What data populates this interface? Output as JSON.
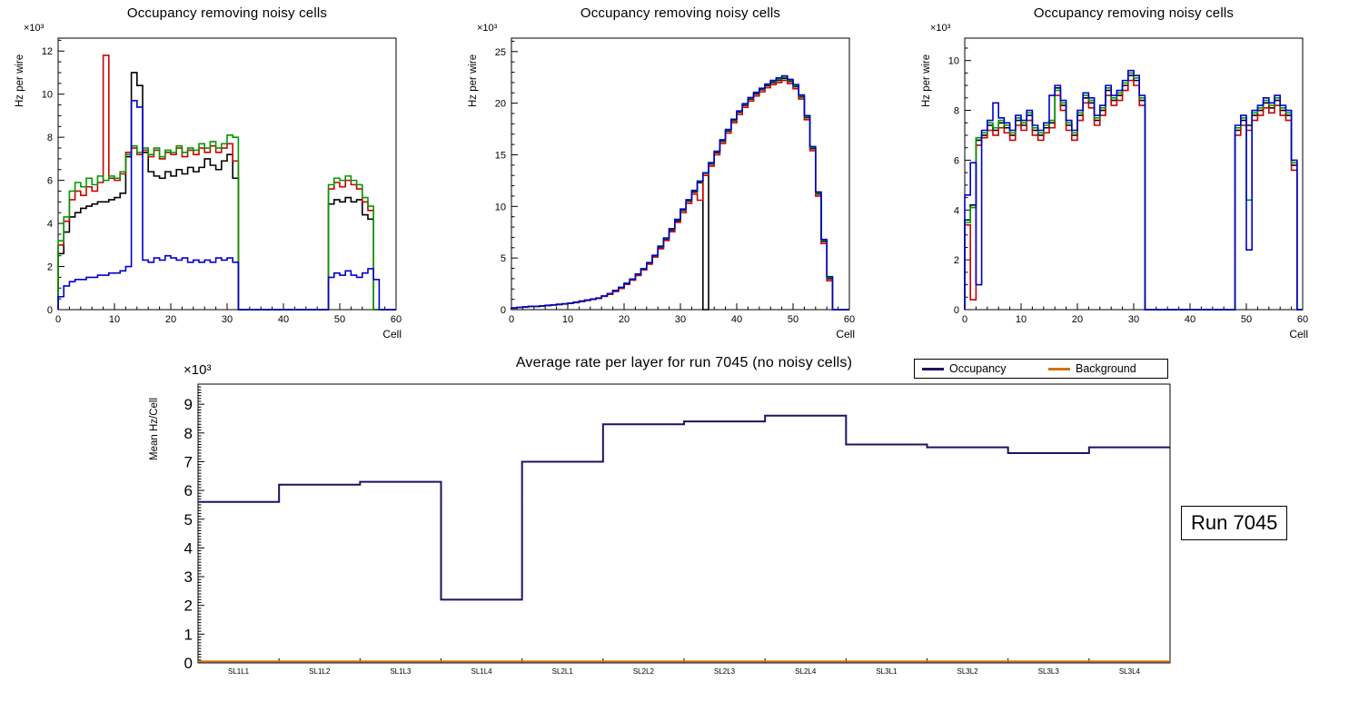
{
  "run_box": {
    "label": "Run 7045"
  },
  "chart_data": [
    {
      "type": "bar",
      "subtype": "histogram-step",
      "title": "Occupancy removing noisy cells",
      "ylabel": "Hz per wire",
      "xlabel": "Cell",
      "exponent": "×10³",
      "xlim": [
        0,
        60
      ],
      "ylim": [
        0,
        12.6
      ],
      "xticks": [
        0,
        10,
        20,
        30,
        40,
        50,
        60
      ],
      "yticks": [
        0,
        2,
        4,
        6,
        8,
        10,
        12
      ],
      "grid": false,
      "legend_position": "none",
      "series": [
        {
          "name": "black",
          "color": "#000000",
          "values": [
            2.6,
            3.6,
            4.3,
            4.5,
            4.7,
            4.8,
            4.9,
            5.0,
            5.0,
            5.1,
            5.2,
            5.4,
            7.1,
            11.0,
            10.4,
            7.3,
            6.4,
            6.2,
            6.1,
            6.4,
            6.2,
            6.5,
            6.3,
            6.6,
            6.4,
            6.6,
            7.0,
            6.7,
            6.5,
            6.9,
            7.2,
            6.1,
            0,
            0,
            0,
            0,
            0,
            0,
            0,
            0,
            0,
            0,
            0,
            0,
            0,
            0,
            0,
            0,
            4.9,
            5.1,
            5.0,
            5.2,
            5.0,
            5.1,
            4.4,
            4.2,
            0,
            0,
            0,
            0
          ]
        },
        {
          "name": "red",
          "color": "#cc0000",
          "values": [
            3.0,
            4.1,
            5.1,
            5.5,
            5.3,
            5.7,
            5.5,
            5.9,
            11.8,
            6.1,
            6.0,
            6.3,
            7.3,
            7.5,
            7.2,
            7.4,
            7.1,
            7.4,
            7.0,
            7.3,
            7.2,
            7.5,
            7.1,
            7.4,
            7.2,
            7.5,
            7.3,
            7.6,
            7.3,
            7.5,
            7.7,
            6.9,
            0,
            0,
            0,
            0,
            0,
            0,
            0,
            0,
            0,
            0,
            0,
            0,
            0,
            0,
            0,
            0,
            5.6,
            5.9,
            5.7,
            6.0,
            5.8,
            5.6,
            5.0,
            4.6,
            0,
            0,
            0,
            0
          ]
        },
        {
          "name": "green",
          "color": "#009900",
          "values": [
            3.2,
            4.3,
            5.5,
            5.9,
            5.7,
            6.1,
            5.8,
            6.2,
            6.0,
            6.2,
            6.1,
            6.4,
            7.2,
            7.6,
            7.3,
            7.5,
            7.2,
            7.5,
            7.1,
            7.4,
            7.3,
            7.6,
            7.3,
            7.5,
            7.4,
            7.7,
            7.5,
            7.8,
            7.5,
            7.7,
            8.1,
            8.0,
            0,
            0,
            0,
            0,
            0,
            0,
            0,
            0,
            0,
            0,
            0,
            0,
            0,
            0,
            0,
            0,
            5.8,
            6.1,
            6.0,
            6.2,
            6.0,
            5.8,
            5.2,
            4.8,
            0,
            0,
            0,
            0
          ]
        },
        {
          "name": "blue",
          "color": "#0000cc",
          "values": [
            0.6,
            1.1,
            1.3,
            1.4,
            1.4,
            1.5,
            1.5,
            1.6,
            1.6,
            1.7,
            1.7,
            1.8,
            2.0,
            9.7,
            9.4,
            2.3,
            2.2,
            2.4,
            2.3,
            2.5,
            2.4,
            2.3,
            2.4,
            2.2,
            2.3,
            2.2,
            2.3,
            2.2,
            2.4,
            2.3,
            2.4,
            2.2,
            0,
            0,
            0,
            0,
            0,
            0,
            0,
            0,
            0,
            0,
            0,
            0,
            0,
            0,
            0,
            0,
            1.5,
            1.7,
            1.6,
            1.8,
            1.6,
            1.5,
            1.7,
            1.9,
            1.4,
            0,
            0,
            0
          ]
        }
      ]
    },
    {
      "type": "bar",
      "subtype": "histogram-step",
      "title": "Occupancy removing noisy cells",
      "ylabel": "Hz per wire",
      "xlabel": "Cell",
      "exponent": "×10³",
      "xlim": [
        0,
        60
      ],
      "ylim": [
        0,
        26.3
      ],
      "xticks": [
        0,
        10,
        20,
        30,
        40,
        50,
        60
      ],
      "yticks": [
        0,
        5,
        10,
        15,
        20,
        25
      ],
      "grid": false,
      "legend_position": "none",
      "series": [
        {
          "name": "black",
          "color": "#000000",
          "values": [
            0.15,
            0.2,
            0.25,
            0.3,
            0.3,
            0.35,
            0.4,
            0.45,
            0.5,
            0.55,
            0.6,
            0.7,
            0.8,
            0.9,
            1.0,
            1.1,
            1.3,
            1.5,
            1.8,
            2.1,
            2.5,
            2.9,
            3.4,
            3.9,
            4.5,
            5.2,
            6.0,
            6.8,
            7.7,
            8.6,
            9.6,
            10.5,
            11.4,
            12.3,
            0,
            14.1,
            15.2,
            16.3,
            17.3,
            18.3,
            19.1,
            19.8,
            20.4,
            20.9,
            21.3,
            21.7,
            22.0,
            22.2,
            22.4,
            22.1,
            21.6,
            20.6,
            18.6,
            15.6,
            11.2,
            6.6,
            3.0,
            0,
            0,
            0
          ]
        },
        {
          "name": "red",
          "color": "#cc0000",
          "values": [
            0.15,
            0.2,
            0.24,
            0.29,
            0.31,
            0.34,
            0.39,
            0.44,
            0.49,
            0.54,
            0.6,
            0.68,
            0.78,
            0.88,
            0.98,
            1.08,
            1.28,
            1.48,
            1.75,
            2.05,
            2.45,
            2.85,
            3.3,
            3.85,
            4.4,
            5.1,
            5.9,
            6.7,
            7.55,
            8.45,
            9.4,
            10.3,
            11.2,
            10.6,
            13.0,
            13.9,
            15.0,
            16.1,
            17.1,
            18.1,
            18.9,
            19.6,
            20.2,
            20.7,
            21.1,
            21.5,
            21.8,
            22.0,
            22.2,
            21.9,
            21.4,
            20.4,
            18.4,
            15.4,
            11.0,
            6.4,
            2.8,
            0,
            0,
            0
          ]
        },
        {
          "name": "green",
          "color": "#009900",
          "values": [
            0.16,
            0.21,
            0.26,
            0.31,
            0.32,
            0.36,
            0.41,
            0.46,
            0.51,
            0.56,
            0.62,
            0.72,
            0.82,
            0.92,
            1.02,
            1.12,
            1.32,
            1.55,
            1.85,
            2.15,
            2.55,
            2.95,
            3.45,
            3.95,
            4.55,
            5.25,
            6.1,
            6.9,
            7.8,
            8.7,
            9.7,
            10.6,
            11.5,
            12.4,
            13.2,
            14.2,
            15.3,
            16.4,
            17.4,
            18.4,
            19.2,
            19.9,
            20.5,
            21.0,
            21.4,
            21.8,
            22.1,
            22.3,
            22.5,
            22.2,
            21.7,
            20.7,
            18.7,
            15.7,
            11.3,
            6.7,
            3.1,
            0,
            0,
            0
          ]
        },
        {
          "name": "blue",
          "color": "#0000cc",
          "values": [
            0.17,
            0.22,
            0.27,
            0.32,
            0.33,
            0.37,
            0.42,
            0.47,
            0.52,
            0.57,
            0.63,
            0.73,
            0.83,
            0.93,
            1.03,
            1.13,
            1.33,
            1.56,
            1.86,
            2.16,
            2.56,
            2.96,
            3.46,
            3.96,
            4.56,
            5.26,
            6.15,
            6.95,
            7.85,
            8.75,
            9.75,
            10.65,
            11.55,
            12.45,
            13.25,
            14.25,
            15.35,
            16.45,
            17.45,
            18.45,
            19.25,
            19.95,
            20.55,
            21.05,
            21.45,
            21.85,
            22.2,
            22.45,
            22.65,
            22.3,
            21.8,
            20.8,
            18.8,
            15.8,
            11.4,
            6.8,
            3.2,
            0,
            0,
            0
          ]
        }
      ]
    },
    {
      "type": "bar",
      "subtype": "histogram-step",
      "title": "Occupancy removing noisy cells",
      "ylabel": "Hz per wire",
      "xlabel": "Cell",
      "exponent": "×10³",
      "xlim": [
        0,
        60
      ],
      "ylim": [
        0,
        10.9
      ],
      "xticks": [
        0,
        10,
        20,
        30,
        40,
        50,
        60
      ],
      "yticks": [
        0,
        2,
        4,
        6,
        8,
        10
      ],
      "grid": false,
      "legend_position": "none",
      "series": [
        {
          "name": "black",
          "color": "#000000",
          "values": [
            3.6,
            4.2,
            6.8,
            7.0,
            7.4,
            7.2,
            7.5,
            7.3,
            7.0,
            7.6,
            7.4,
            7.8,
            7.2,
            7.0,
            7.3,
            7.5,
            8.9,
            8.2,
            7.4,
            7.0,
            7.8,
            8.5,
            8.3,
            7.6,
            8.0,
            8.8,
            8.4,
            8.6,
            9.0,
            9.4,
            9.2,
            8.4,
            0,
            0,
            0,
            0,
            0,
            0,
            0,
            0,
            0,
            0,
            0,
            0,
            0,
            0,
            0,
            0,
            7.2,
            7.6,
            7.4,
            7.8,
            8.0,
            8.3,
            8.1,
            8.4,
            8.0,
            7.8,
            5.8,
            0
          ]
        },
        {
          "name": "red",
          "color": "#cc0000",
          "values": [
            3.4,
            0.4,
            6.6,
            6.9,
            7.2,
            7.0,
            7.3,
            7.1,
            6.8,
            7.4,
            7.2,
            7.6,
            7.0,
            6.8,
            7.1,
            7.3,
            8.6,
            8.0,
            7.2,
            6.8,
            7.6,
            8.3,
            8.1,
            7.4,
            7.8,
            8.6,
            8.2,
            8.4,
            8.8,
            9.2,
            9.0,
            8.2,
            0,
            0,
            0,
            0,
            0,
            0,
            0,
            0,
            0,
            0,
            0,
            0,
            0,
            0,
            0,
            0,
            7.0,
            7.4,
            7.2,
            7.6,
            7.8,
            8.1,
            7.9,
            8.2,
            7.8,
            7.6,
            5.6,
            0
          ]
        },
        {
          "name": "green",
          "color": "#009900",
          "values": [
            3.5,
            4.1,
            6.9,
            7.1,
            7.5,
            7.3,
            7.6,
            7.4,
            7.1,
            7.7,
            7.5,
            7.9,
            7.3,
            7.1,
            7.4,
            7.6,
            8.8,
            8.3,
            7.5,
            7.1,
            7.9,
            8.6,
            8.4,
            7.7,
            8.1,
            8.9,
            8.5,
            8.7,
            9.1,
            9.5,
            9.3,
            8.5,
            0,
            0,
            0,
            0,
            0,
            0,
            0,
            0,
            0,
            0,
            0,
            0,
            0,
            0,
            0,
            0,
            7.3,
            7.7,
            4.4,
            7.9,
            8.1,
            8.4,
            8.2,
            8.5,
            8.1,
            7.9,
            5.9,
            0
          ]
        },
        {
          "name": "blue",
          "color": "#0000cc",
          "values": [
            4.6,
            5.9,
            1.0,
            7.2,
            7.6,
            8.3,
            7.7,
            7.5,
            7.2,
            7.8,
            7.6,
            8.0,
            7.4,
            7.2,
            7.5,
            8.6,
            9.0,
            8.4,
            7.6,
            7.2,
            8.0,
            8.7,
            8.5,
            7.8,
            8.2,
            9.0,
            8.6,
            8.8,
            9.2,
            9.6,
            9.4,
            8.6,
            0,
            0,
            0,
            0,
            0,
            0,
            0,
            0,
            0,
            0,
            0,
            0,
            0,
            0,
            0,
            0,
            7.4,
            7.8,
            2.4,
            8.0,
            8.2,
            8.5,
            8.3,
            8.6,
            8.2,
            8.0,
            6.0,
            0
          ]
        }
      ]
    },
    {
      "type": "line",
      "subtype": "step-line",
      "title": "Average rate per layer for run 7045 (no noisy cells)",
      "ylabel": "Mean Hz/Cell",
      "xlabel": "",
      "exponent": "×10³",
      "categories": [
        "SL1L1",
        "SL1L2",
        "SL1L3",
        "SL1L4",
        "SL2L1",
        "SL2L2",
        "SL2L3",
        "SL2L4",
        "SL3L1",
        "SL3L2",
        "SL3L3",
        "SL3L4"
      ],
      "ylim": [
        0,
        9.7
      ],
      "yticks": [
        0,
        1,
        2,
        3,
        4,
        5,
        6,
        7,
        8,
        9
      ],
      "grid": false,
      "legend_position": "top-right",
      "series": [
        {
          "name": "Occupancy",
          "color": "#250f63",
          "values": [
            5.6,
            6.2,
            6.3,
            2.2,
            7.0,
            8.3,
            8.4,
            8.6,
            7.6,
            7.5,
            7.3,
            7.5
          ]
        },
        {
          "name": "Background",
          "color": "#d4730a",
          "values": [
            0.05,
            0.05,
            0.05,
            0.05,
            0.05,
            0.05,
            0.05,
            0.05,
            0.05,
            0.05,
            0.05,
            0.05
          ]
        }
      ]
    }
  ]
}
